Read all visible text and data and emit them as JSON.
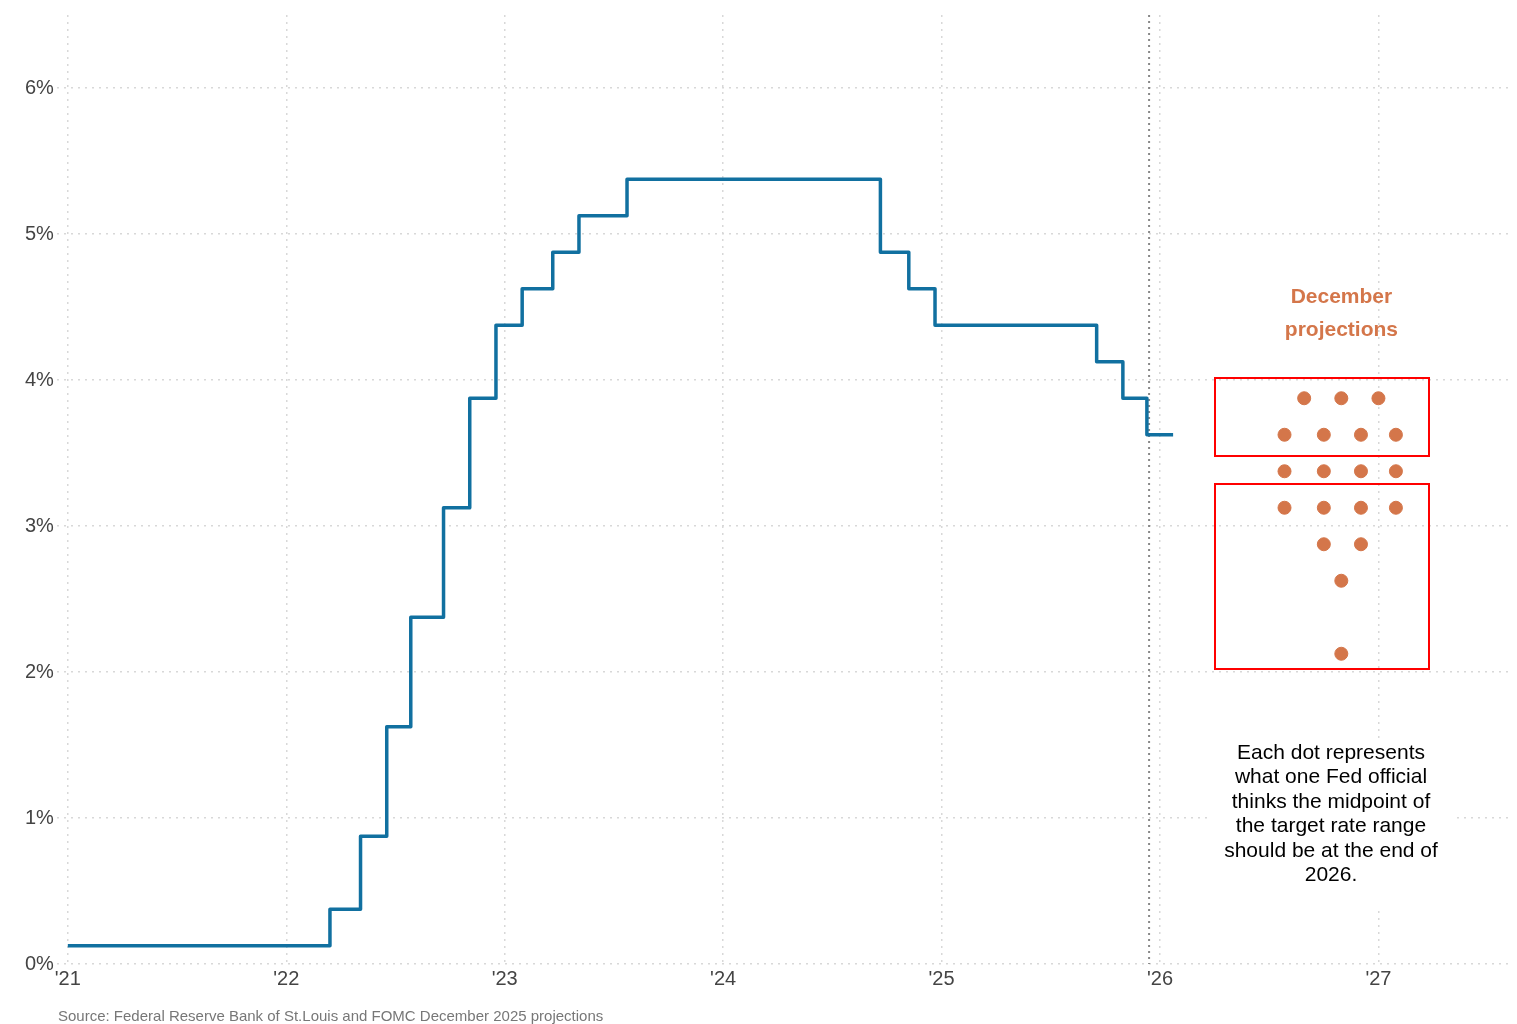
{
  "chart_data": {
    "type": "line",
    "xlim": [
      2020.95,
      2027.6
    ],
    "ylim": [
      0,
      6.5
    ],
    "xticks": [
      {
        "value": 2021,
        "label": "'21"
      },
      {
        "value": 2022,
        "label": "'22"
      },
      {
        "value": 2023,
        "label": "'23"
      },
      {
        "value": 2024,
        "label": "'24"
      },
      {
        "value": 2025,
        "label": "'25"
      },
      {
        "value": 2026,
        "label": "'26"
      },
      {
        "value": 2027,
        "label": "'27"
      }
    ],
    "yticks": [
      {
        "value": 0,
        "label": "0%"
      },
      {
        "value": 1,
        "label": "1%"
      },
      {
        "value": 2,
        "label": "2%"
      },
      {
        "value": 3,
        "label": "3%"
      },
      {
        "value": 4,
        "label": "4%"
      },
      {
        "value": 5,
        "label": "5%"
      },
      {
        "value": 6,
        "label": "6%"
      }
    ],
    "grid": true,
    "legend": false,
    "series": [
      {
        "type": "step",
        "color": "#1170a0",
        "x": [
          2021,
          2022.2,
          2022.34,
          2022.46,
          2022.57,
          2022.72,
          2022.84,
          2022.96,
          2023.08,
          2023.22,
          2023.34,
          2023.56,
          2024.72,
          2024.85,
          2024.97,
          2025.71,
          2025.83,
          2025.94,
          2026.06
        ],
        "values": [
          0.125,
          0.375,
          0.875,
          1.625,
          2.375,
          3.125,
          3.875,
          4.375,
          4.625,
          4.875,
          5.125,
          5.375,
          4.875,
          4.625,
          4.375,
          4.125,
          3.875,
          3.625,
          3.625
        ]
      },
      {
        "type": "scatter",
        "name": "December projections",
        "color": "#d4764a",
        "marker": "circle",
        "x": [
          2026.66,
          2026.83,
          2027.0,
          2026.57,
          2026.75,
          2026.92,
          2027.08,
          2026.57,
          2026.75,
          2026.92,
          2027.08,
          2026.57,
          2026.75,
          2026.92,
          2027.08,
          2026.75,
          2026.92,
          2026.83,
          2026.83
        ],
        "values": [
          3.875,
          3.875,
          3.875,
          3.625,
          3.625,
          3.625,
          3.625,
          3.375,
          3.375,
          3.375,
          3.375,
          3.125,
          3.125,
          3.125,
          3.125,
          2.875,
          2.875,
          2.625,
          2.125
        ]
      }
    ],
    "ref_lines": [
      {
        "axis": "x",
        "value": 2025.95,
        "color": "#888888",
        "line_style": "dotted"
      }
    ],
    "annotations": [
      "Each dot represents what one Fed official thinks the midpoint of the target rate range should be at the end of 2026.",
      "Source: Federal Reserve Bank of St.Louis and FOMC December 2025 projections"
    ]
  }
}
